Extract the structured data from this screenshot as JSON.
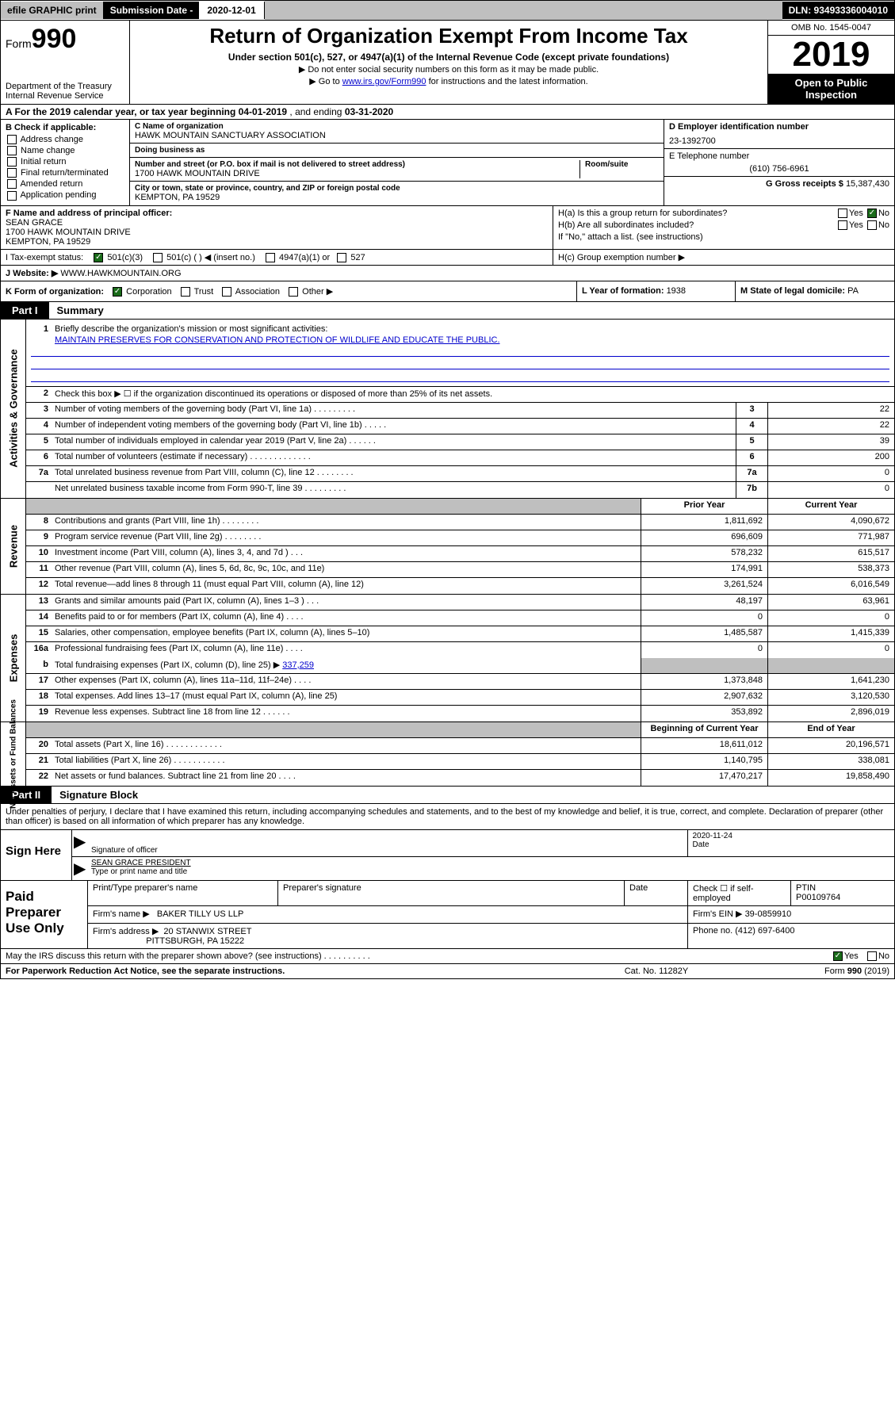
{
  "top": {
    "efile": "efile GRAPHIC print",
    "subdate_label": "Submission Date - ",
    "subdate": "2020-12-01",
    "dln": "DLN: 93493336004010"
  },
  "header": {
    "form_small": "Form",
    "form_big": "990",
    "dept": "Department of the Treasury\nInternal Revenue Service",
    "title": "Return of Organization Exempt From Income Tax",
    "sub": "Under section 501(c), 527, or 4947(a)(1) of the Internal Revenue Code (except private foundations)",
    "note1": "▶ Do not enter social security numbers on this form as it may be made public.",
    "note2_pre": "▶ Go to ",
    "note2_link": "www.irs.gov/Form990",
    "note2_post": " for instructions and the latest information.",
    "omb": "OMB No. 1545-0047",
    "year": "2019",
    "open": "Open to Public Inspection"
  },
  "line_a": {
    "pre": "A For the 2019 calendar year, or tax year beginning ",
    "start": "04-01-2019",
    "mid": " , and ending ",
    "end": "03-31-2020"
  },
  "box_b": {
    "label": "B Check if applicable:",
    "items": [
      "Address change",
      "Name change",
      "Initial return",
      "Final return/terminated",
      "Amended return",
      "Application pending"
    ]
  },
  "box_c": {
    "name_label": "C Name of organization",
    "name": "HAWK MOUNTAIN SANCTUARY ASSOCIATION",
    "dba_label": "Doing business as",
    "dba": "",
    "addr_label": "Number and street (or P.O. box if mail is not delivered to street address)",
    "room_label": "Room/suite",
    "addr": "1700 HAWK MOUNTAIN DRIVE",
    "city_label": "City or town, state or province, country, and ZIP or foreign postal code",
    "city": "KEMPTON, PA  19529"
  },
  "box_d": {
    "ein_label": "D Employer identification number",
    "ein": "23-1392700",
    "tel_label": "E Telephone number",
    "tel": "(610) 756-6961",
    "gross_label": "G Gross receipts $ ",
    "gross": "15,387,430"
  },
  "box_f": {
    "label": "F Name and address of principal officer:",
    "name": "SEAN GRACE",
    "addr1": "1700 HAWK MOUNTAIN DRIVE",
    "addr2": "KEMPTON, PA  19529"
  },
  "box_h": {
    "a": "H(a)  Is this a group return for subordinates?",
    "b": "H(b)  Are all subordinates included?",
    "note": "If \"No,\" attach a list. (see instructions)",
    "c": "H(c)  Group exemption number ▶"
  },
  "line_i": {
    "label": "I   Tax-exempt status:",
    "opts": [
      "501(c)(3)",
      "501(c) (  ) ◀ (insert no.)",
      "4947(a)(1) or",
      "527"
    ]
  },
  "line_j": {
    "label": "J   Website: ▶ ",
    "val": "WWW.HAWKMOUNTAIN.ORG"
  },
  "line_k": {
    "label": "K Form of organization:",
    "opts": [
      "Corporation",
      "Trust",
      "Association",
      "Other ▶"
    ],
    "l": "L Year of formation: ",
    "l_val": "1938",
    "m": "M State of legal domicile: ",
    "m_val": "PA"
  },
  "part1": {
    "tag": "Part I",
    "title": "Summary"
  },
  "gov": {
    "l1": "Briefly describe the organization's mission or most significant activities:",
    "mission": "MAINTAIN PRESERVES FOR CONSERVATION AND PROTECTION OF WILDLIFE AND EDUCATE THE PUBLIC.",
    "l2": "Check this box ▶ ☐  if the organization discontinued its operations or disposed of more than 25% of its net assets.",
    "rows": [
      {
        "n": "3",
        "d": "Number of voting members of the governing body (Part VI, line 1a)  .   .   .   .   .   .   .   .   .",
        "b": "3",
        "v": "22"
      },
      {
        "n": "4",
        "d": "Number of independent voting members of the governing body (Part VI, line 1b)  .   .   .   .   .",
        "b": "4",
        "v": "22"
      },
      {
        "n": "5",
        "d": "Total number of individuals employed in calendar year 2019 (Part V, line 2a)  .   .   .   .   .   .",
        "b": "5",
        "v": "39"
      },
      {
        "n": "6",
        "d": "Total number of volunteers (estimate if necessary)  .   .   .   .   .   .   .   .   .   .   .   .   .",
        "b": "6",
        "v": "200"
      },
      {
        "n": "7a",
        "d": "Total unrelated business revenue from Part VIII, column (C), line 12  .   .   .   .   .   .   .   .",
        "b": "7a",
        "v": "0"
      },
      {
        "n": "",
        "d": "Net unrelated business taxable income from Form 990-T, line 39  .   .   .   .   .   .   .   .   .",
        "b": "7b",
        "v": "0"
      }
    ]
  },
  "rev": {
    "hdr_prior": "Prior Year",
    "hdr_curr": "Current Year",
    "rows": [
      {
        "n": "8",
        "d": "Contributions and grants (Part VIII, line 1h)  .   .   .   .   .   .   .   .",
        "p": "1,811,692",
        "c": "4,090,672"
      },
      {
        "n": "9",
        "d": "Program service revenue (Part VIII, line 2g)  .   .   .   .   .   .   .   .",
        "p": "696,609",
        "c": "771,987"
      },
      {
        "n": "10",
        "d": "Investment income (Part VIII, column (A), lines 3, 4, and 7d )  .   .   .",
        "p": "578,232",
        "c": "615,517"
      },
      {
        "n": "11",
        "d": "Other revenue (Part VIII, column (A), lines 5, 6d, 8c, 9c, 10c, and 11e)",
        "p": "174,991",
        "c": "538,373"
      },
      {
        "n": "12",
        "d": "Total revenue—add lines 8 through 11 (must equal Part VIII, column (A), line 12)",
        "p": "3,261,524",
        "c": "6,016,549"
      }
    ]
  },
  "exp": {
    "rows": [
      {
        "n": "13",
        "d": "Grants and similar amounts paid (Part IX, column (A), lines 1–3 )  .   .   .",
        "p": "48,197",
        "c": "63,961"
      },
      {
        "n": "14",
        "d": "Benefits paid to or for members (Part IX, column (A), line 4)  .   .   .   .",
        "p": "0",
        "c": "0"
      },
      {
        "n": "15",
        "d": "Salaries, other compensation, employee benefits (Part IX, column (A), lines 5–10)",
        "p": "1,485,587",
        "c": "1,415,339"
      },
      {
        "n": "16a",
        "d": "Professional fundraising fees (Part IX, column (A), line 11e)  .   .   .   .",
        "p": "0",
        "c": "0"
      }
    ],
    "row_b": {
      "n": "b",
      "d_pre": "Total fundraising expenses (Part IX, column (D), line 25) ▶",
      "d_val": "337,259"
    },
    "rows2": [
      {
        "n": "17",
        "d": "Other expenses (Part IX, column (A), lines 11a–11d, 11f–24e)  .   .   .   .",
        "p": "1,373,848",
        "c": "1,641,230"
      },
      {
        "n": "18",
        "d": "Total expenses. Add lines 13–17 (must equal Part IX, column (A), line 25)",
        "p": "2,907,632",
        "c": "3,120,530"
      },
      {
        "n": "19",
        "d": "Revenue less expenses. Subtract line 18 from line 12  .   .   .   .   .   .",
        "p": "353,892",
        "c": "2,896,019"
      }
    ]
  },
  "net": {
    "hdr_begin": "Beginning of Current Year",
    "hdr_end": "End of Year",
    "rows": [
      {
        "n": "20",
        "d": "Total assets (Part X, line 16)  .   .   .   .   .   .   .   .   .   .   .   .",
        "p": "18,611,012",
        "c": "20,196,571"
      },
      {
        "n": "21",
        "d": "Total liabilities (Part X, line 26)  .   .   .   .   .   .   .   .   .   .   .",
        "p": "1,140,795",
        "c": "338,081"
      },
      {
        "n": "22",
        "d": "Net assets or fund balances. Subtract line 21 from line 20  .   .   .   .",
        "p": "17,470,217",
        "c": "19,858,490"
      }
    ]
  },
  "part2": {
    "tag": "Part II",
    "title": "Signature Block"
  },
  "perjury": "Under penalties of perjury, I declare that I have examined this return, including accompanying schedules and statements, and to the best of my knowledge and belief, it is true, correct, and complete. Declaration of preparer (other than officer) is based on all information of which preparer has any knowledge.",
  "sign": {
    "here": "Sign Here",
    "sig_label": "Signature of officer",
    "date": "2020-11-24",
    "date_label": "Date",
    "name": "SEAN GRACE PRESIDENT",
    "name_label": "Type or print name and title"
  },
  "paid": {
    "label": "Paid Preparer Use Only",
    "h1": "Print/Type preparer's name",
    "h2": "Preparer's signature",
    "h3": "Date",
    "h4_pre": "Check ☐ if self-employed",
    "h5": "PTIN",
    "ptin": "P00109764",
    "firm_name_l": "Firm's name     ▶",
    "firm_name": "BAKER TILLY US LLP",
    "firm_ein_l": "Firm's EIN ▶ ",
    "firm_ein": "39-0859910",
    "firm_addr_l": "Firm's address ▶",
    "firm_addr": "20 STANWIX STREET",
    "firm_city": "PITTSBURGH, PA  15222",
    "phone_l": "Phone no. ",
    "phone": "(412) 697-6400"
  },
  "discuss": "May the IRS discuss this return with the preparer shown above? (see instructions)  .   .   .   .   .   .   .   .   .   .",
  "footer": {
    "l": "For Paperwork Reduction Act Notice, see the separate instructions.",
    "m": "Cat. No. 11282Y",
    "r": "Form 990 (2019)"
  },
  "labels": {
    "gov": "Activities & Governance",
    "rev": "Revenue",
    "exp": "Expenses",
    "net": "Net Assets or Fund Balances"
  },
  "yes": "Yes",
  "no": "No"
}
